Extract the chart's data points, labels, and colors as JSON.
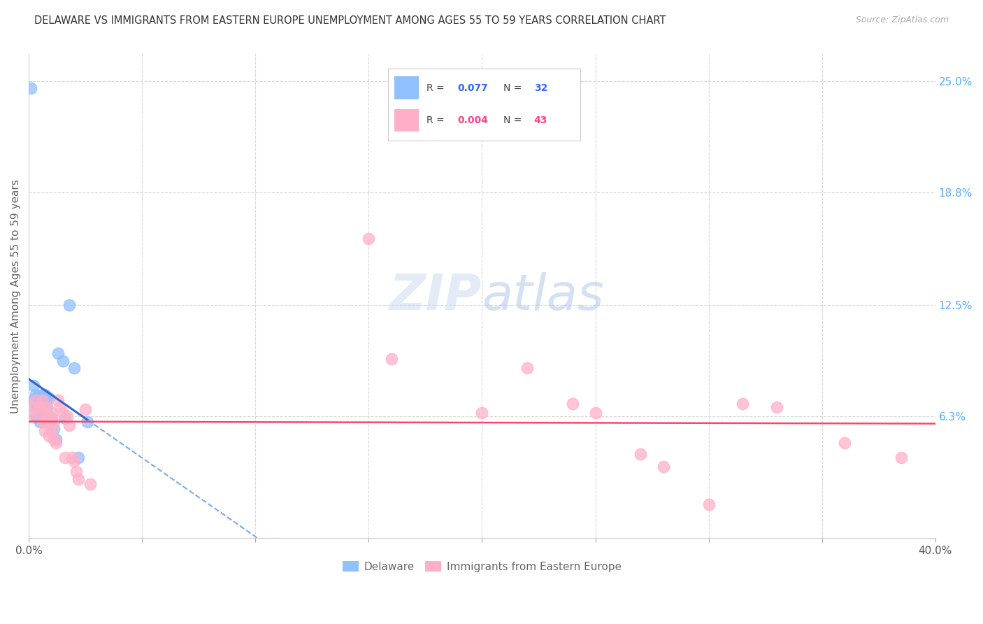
{
  "title": "DELAWARE VS IMMIGRANTS FROM EASTERN EUROPE UNEMPLOYMENT AMONG AGES 55 TO 59 YEARS CORRELATION CHART",
  "source": "Source: ZipAtlas.com",
  "ylabel": "Unemployment Among Ages 55 to 59 years",
  "xlim": [
    0.0,
    0.4
  ],
  "ylim": [
    -0.005,
    0.265
  ],
  "xticks": [
    0.0,
    0.05,
    0.1,
    0.15,
    0.2,
    0.25,
    0.3,
    0.35,
    0.4
  ],
  "yticks_right": [
    0.063,
    0.125,
    0.188,
    0.25
  ],
  "yticks_right_labels": [
    "6.3%",
    "12.5%",
    "18.8%",
    "25.0%"
  ],
  "background_color": "#ffffff",
  "grid_color": "#d8d8d8",
  "delaware_color": "#90C0FF",
  "eastern_europe_color": "#FFB0C8",
  "delaware_trend_color": "#3366CC",
  "eastern_europe_trend_color": "#FF4466",
  "delaware_trend_dashed_color": "#7AAAEE",
  "delaware_x": [
    0.001,
    0.002,
    0.002,
    0.003,
    0.003,
    0.003,
    0.004,
    0.004,
    0.004,
    0.005,
    0.005,
    0.005,
    0.006,
    0.006,
    0.006,
    0.007,
    0.007,
    0.007,
    0.008,
    0.008,
    0.009,
    0.009,
    0.01,
    0.011,
    0.012,
    0.013,
    0.015,
    0.016,
    0.018,
    0.02,
    0.022,
    0.026
  ],
  "delaware_y": [
    0.246,
    0.08,
    0.072,
    0.075,
    0.068,
    0.063,
    0.074,
    0.069,
    0.062,
    0.073,
    0.066,
    0.06,
    0.075,
    0.069,
    0.063,
    0.075,
    0.069,
    0.063,
    0.074,
    0.068,
    0.073,
    0.063,
    0.062,
    0.056,
    0.05,
    0.098,
    0.094,
    0.062,
    0.125,
    0.09,
    0.04,
    0.06
  ],
  "eastern_europe_x": [
    0.001,
    0.002,
    0.003,
    0.004,
    0.005,
    0.006,
    0.006,
    0.007,
    0.007,
    0.008,
    0.008,
    0.009,
    0.009,
    0.01,
    0.01,
    0.011,
    0.011,
    0.012,
    0.013,
    0.014,
    0.015,
    0.016,
    0.017,
    0.018,
    0.019,
    0.02,
    0.021,
    0.022,
    0.025,
    0.027,
    0.15,
    0.16,
    0.2,
    0.22,
    0.24,
    0.25,
    0.27,
    0.28,
    0.3,
    0.315,
    0.33,
    0.36,
    0.385
  ],
  "eastern_europe_y": [
    0.063,
    0.068,
    0.072,
    0.065,
    0.068,
    0.072,
    0.06,
    0.068,
    0.055,
    0.068,
    0.06,
    0.063,
    0.052,
    0.065,
    0.055,
    0.06,
    0.05,
    0.048,
    0.072,
    0.068,
    0.065,
    0.04,
    0.063,
    0.058,
    0.04,
    0.038,
    0.032,
    0.028,
    0.067,
    0.025,
    0.162,
    0.095,
    0.065,
    0.09,
    0.07,
    0.065,
    0.042,
    0.035,
    0.014,
    0.07,
    0.068,
    0.048,
    0.04
  ],
  "delaware_trend_x0": 0.0,
  "delaware_trend_x_solid_end": 0.026,
  "delaware_trend_x1": 0.4,
  "eastern_europe_trend_x0": 0.0,
  "eastern_europe_trend_x1": 0.4
}
